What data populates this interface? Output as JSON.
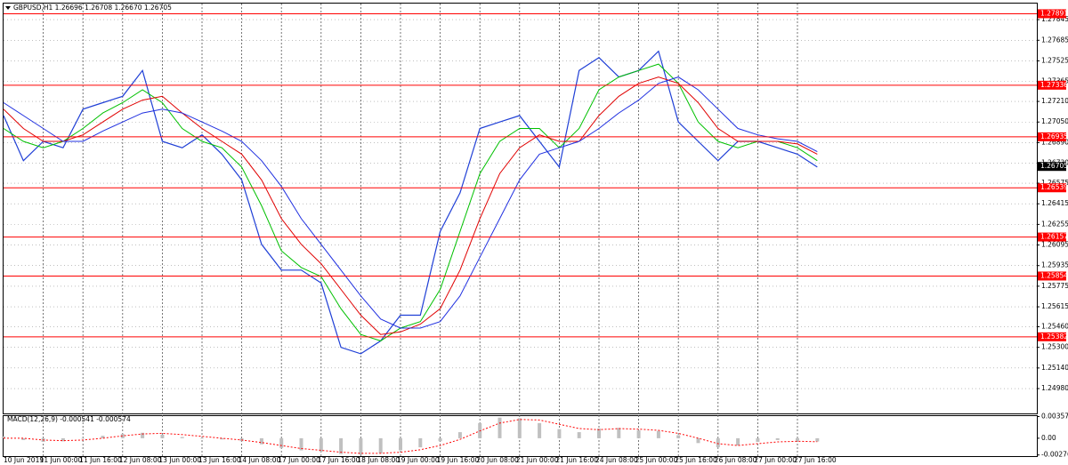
{
  "chart_data": [
    {
      "type": "line",
      "title": "GBPUSD,H1  1.26696 1.26708 1.26670 1.26705",
      "categories": [
        "10 Jun 2019",
        null,
        "11 Jun 00:00",
        null,
        "11 Jun 16:00",
        null,
        "12 Jun 08:00",
        null,
        "13 Jun 00:00",
        null,
        "13 Jun 16:00",
        null,
        "14 Jun 08:00",
        null,
        "17 Jun 00:00",
        null,
        "17 Jun 16:00",
        null,
        "18 Jun 08:00",
        null,
        "19 Jun 00:00",
        null,
        "19 Jun 16:00",
        null,
        "20 Jun 08:00",
        null,
        "21 Jun 00:00",
        null,
        "21 Jun 16:00",
        null,
        "24 Jun 08:00",
        null,
        "25 Jun 00:00",
        null,
        "25 Jun 16:00",
        null,
        "26 Jun 08:00",
        null,
        "27 Jun 00:00",
        null,
        "27 Jun 16:00",
        null
      ],
      "series": [
        {
          "color": "#1f3fd6",
          "values": [
            1.271,
            1.2675,
            1.269,
            1.2685,
            1.2715,
            1.272,
            1.2725,
            1.2745,
            1.269,
            1.2685,
            1.2695,
            1.268,
            1.266,
            1.261,
            1.259,
            1.259,
            1.258,
            1.253,
            1.2525,
            1.2535,
            1.2555,
            1.2555,
            1.262,
            1.265,
            1.27,
            1.2705,
            1.271,
            1.269,
            1.267,
            1.2745,
            1.2755,
            1.274,
            1.2745,
            1.276,
            1.2705,
            1.269,
            1.2675,
            1.269,
            1.269,
            1.2685,
            1.268,
            1.267
          ]
        },
        {
          "color": "#00c000",
          "values": [
            1.27,
            1.269,
            1.2685,
            1.269,
            1.27,
            1.2712,
            1.272,
            1.273,
            1.272,
            1.27,
            1.269,
            1.2685,
            1.267,
            1.264,
            1.2605,
            1.2592,
            1.2585,
            1.256,
            1.254,
            1.2535,
            1.2545,
            1.255,
            1.2575,
            1.262,
            1.2665,
            1.269,
            1.27,
            1.27,
            1.2685,
            1.27,
            1.273,
            1.274,
            1.2745,
            1.275,
            1.2735,
            1.2705,
            1.269,
            1.2685,
            1.269,
            1.269,
            1.2685,
            1.2675
          ]
        },
        {
          "color": "#e00000",
          "values": [
            1.2715,
            1.27,
            1.269,
            1.269,
            1.2695,
            1.2705,
            1.2715,
            1.2722,
            1.2725,
            1.2712,
            1.27,
            1.269,
            1.268,
            1.266,
            1.263,
            1.261,
            1.2595,
            1.2575,
            1.2555,
            1.254,
            1.2542,
            1.2548,
            1.256,
            1.259,
            1.263,
            1.2665,
            1.2685,
            1.2695,
            1.269,
            1.269,
            1.271,
            1.2725,
            1.2735,
            1.274,
            1.2735,
            1.272,
            1.27,
            1.269,
            1.269,
            1.269,
            1.2688,
            1.268
          ]
        },
        {
          "color": "#2030e0",
          "values": [
            1.272,
            1.271,
            1.27,
            1.269,
            1.269,
            1.2698,
            1.2705,
            1.2712,
            1.2715,
            1.2712,
            1.2705,
            1.2698,
            1.269,
            1.2675,
            1.2655,
            1.263,
            1.261,
            1.259,
            1.257,
            1.2552,
            1.2545,
            1.2545,
            1.255,
            1.257,
            1.26,
            1.263,
            1.266,
            1.268,
            1.2685,
            1.269,
            1.27,
            1.2712,
            1.2722,
            1.2735,
            1.274,
            1.273,
            1.2715,
            1.27,
            1.2695,
            1.2692,
            1.269,
            1.2682
          ]
        }
      ],
      "ylim": [
        1.2478,
        1.2797
      ],
      "yticks": [
        1.27845,
        1.27685,
        1.27525,
        1.27365,
        {
          "value": 1.2721,
          "label": "1.27210"
        },
        {
          "value": 1.2705,
          "label": "1.27050"
        },
        {
          "value": 1.2689,
          "label": "1.26890"
        },
        {
          "value": 1.2673,
          "label": "1.26730"
        },
        1.26575,
        1.26415,
        1.26255,
        1.26095,
        1.25935,
        1.25775,
        1.25615,
        {
          "value": 1.2546,
          "label": "1.25460"
        },
        {
          "value": 1.253,
          "label": "1.25300"
        },
        {
          "value": 1.2514,
          "label": "1.25140"
        },
        {
          "value": 1.2498,
          "label": "1.24980"
        }
      ],
      "grid": true,
      "levels": [
        1.27891,
        1.27336,
        1.26935,
        1.26539,
        1.26157,
        1.25854,
        1.25382
      ],
      "level_color": "#ff0000",
      "current_price": 1.26705
    },
    {
      "type": "bar",
      "title": "MACD(12,26,9) -0.000541 -0.000574",
      "series": [
        {
          "color": "#c0c0c0",
          "values": [
            0.0003,
            -0.0003,
            -0.0006,
            -0.0005,
            0.0,
            0.0004,
            0.0007,
            0.0009,
            0.0006,
            0.0002,
            0.0,
            -0.0002,
            -0.0005,
            -0.001,
            -0.0016,
            -0.002,
            -0.0022,
            -0.0026,
            -0.0027,
            -0.0025,
            -0.002,
            -0.0015,
            -0.0005,
            0.001,
            0.0025,
            0.0034,
            0.0033,
            0.0025,
            0.0015,
            0.001,
            0.0016,
            0.0017,
            0.0013,
            0.0012,
            0.0005,
            -0.0008,
            -0.0015,
            -0.0012,
            -0.0006,
            -0.0003,
            -0.0004,
            -0.000541
          ]
        },
        {
          "color": "#ff0000",
          "values": [
            0.0,
            0.0,
            -0.0003,
            -0.0004,
            -0.0003,
            0.0,
            0.0004,
            0.0007,
            0.0008,
            0.0006,
            0.0003,
            0.0,
            -0.0003,
            -0.0007,
            -0.0012,
            -0.0017,
            -0.002,
            -0.0023,
            -0.0025,
            -0.0025,
            -0.0023,
            -0.0019,
            -0.0012,
            -0.0002,
            0.0012,
            0.0025,
            0.0031,
            0.003,
            0.0023,
            0.0016,
            0.0014,
            0.0016,
            0.0015,
            0.0013,
            0.0008,
            0.0,
            -0.0009,
            -0.0012,
            -0.0009,
            -0.0006,
            -0.0005,
            -0.000574
          ]
        }
      ],
      "ylim": [
        -0.0031,
        0.0038
      ],
      "yticks": [
        0.003576,
        {
          "value": 0,
          "label": "0.00"
        },
        -0.002764
      ]
    }
  ]
}
